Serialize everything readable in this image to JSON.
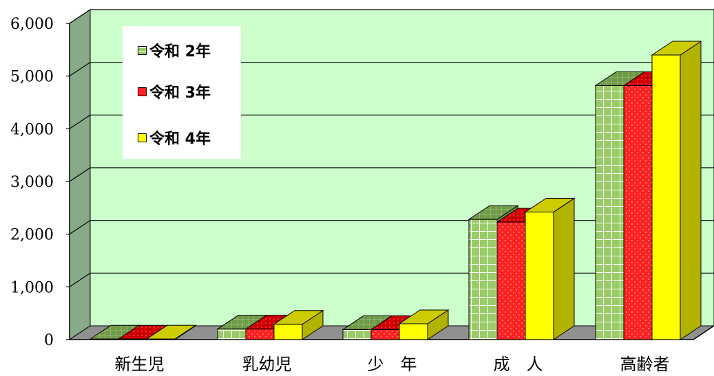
{
  "chart_data": {
    "type": "bar",
    "categories": [
      "新生児",
      "乳幼児",
      "少　年",
      "成　人",
      "高齢者"
    ],
    "series": [
      {
        "name": "令和 2年",
        "values": [
          10,
          200,
          190,
          2280,
          4820
        ],
        "color": "#99cc66",
        "pattern": "grid"
      },
      {
        "name": "令和 3年",
        "values": [
          10,
          200,
          190,
          2230,
          4820
        ],
        "color": "#ff2020",
        "pattern": "dots"
      },
      {
        "name": "令和 4年",
        "values": [
          10,
          290,
          300,
          2420,
          5400
        ],
        "color": "#ffff00",
        "pattern": "solid"
      }
    ],
    "yticks": [
      "0",
      "1,000",
      "2,000",
      "3,000",
      "4,000",
      "5,000",
      "6,000"
    ],
    "ylim": [
      0,
      6000
    ],
    "title": "",
    "xlabel": "",
    "ylabel": "",
    "legend_position": "top-left",
    "grid": true,
    "style": "3d-bar"
  }
}
